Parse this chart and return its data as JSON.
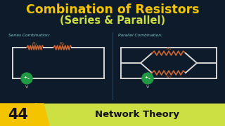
{
  "bg_color": "#0d1b2a",
  "title_line1": "Combination of Resistors",
  "title_line2": "(Series & Parallel)",
  "title_color": "#f5c400",
  "subtitle_color": "#ccdd44",
  "wire_color": "#d8d8d8",
  "resistor_color": "#cc6633",
  "voltage_color": "#229944",
  "label_color": "#88cccc",
  "series_label": "Series Combination:",
  "parallel_label": "Parallel Combination:",
  "divider_color": "#3a5a7a",
  "bottom_bar_color": "#cce044",
  "bottom_num": "44",
  "bottom_num_color": "#111111",
  "bottom_text": "Network Theory",
  "bottom_text_color": "#111111",
  "badge_color": "#f5c400"
}
